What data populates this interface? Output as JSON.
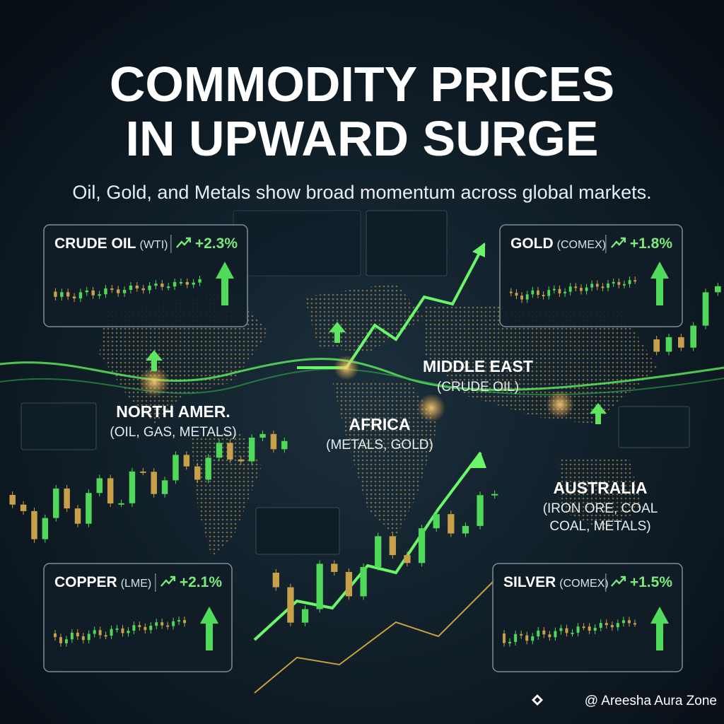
{
  "header": {
    "title_line1": "COMMODITY PRICES",
    "title_line2": "IN UPWARD SURGE",
    "subtitle": "Oil, Gold, and Metals show broad momentum across global markets."
  },
  "cards": [
    {
      "name": "CRUDE OIL",
      "exchange": "(WTI)",
      "change": "+2.3%"
    },
    {
      "name": "GOLD",
      "exchange": "(COMEX)",
      "change": "+1.8%"
    },
    {
      "name": "COPPER",
      "exchange": "(LME)",
      "change": "+2.1%"
    },
    {
      "name": "SILVER",
      "exchange": "(COMEX)",
      "change": "+1.5%"
    }
  ],
  "regions": [
    {
      "name": "NORTH AMER.",
      "lines": [
        "(OIL, GAS, METALS)"
      ]
    },
    {
      "name": "MIDDLE EAST",
      "lines": [
        "(CRUDE OIL)"
      ]
    },
    {
      "name": "AFRICA",
      "lines": [
        "(METALS, GOLD)"
      ]
    },
    {
      "name": "AUSTRALIA",
      "lines": [
        "(IRON ORE, COAL",
        "COAL, METALS)"
      ]
    }
  ],
  "watermark": "@ Areesha Aura Zone"
}
